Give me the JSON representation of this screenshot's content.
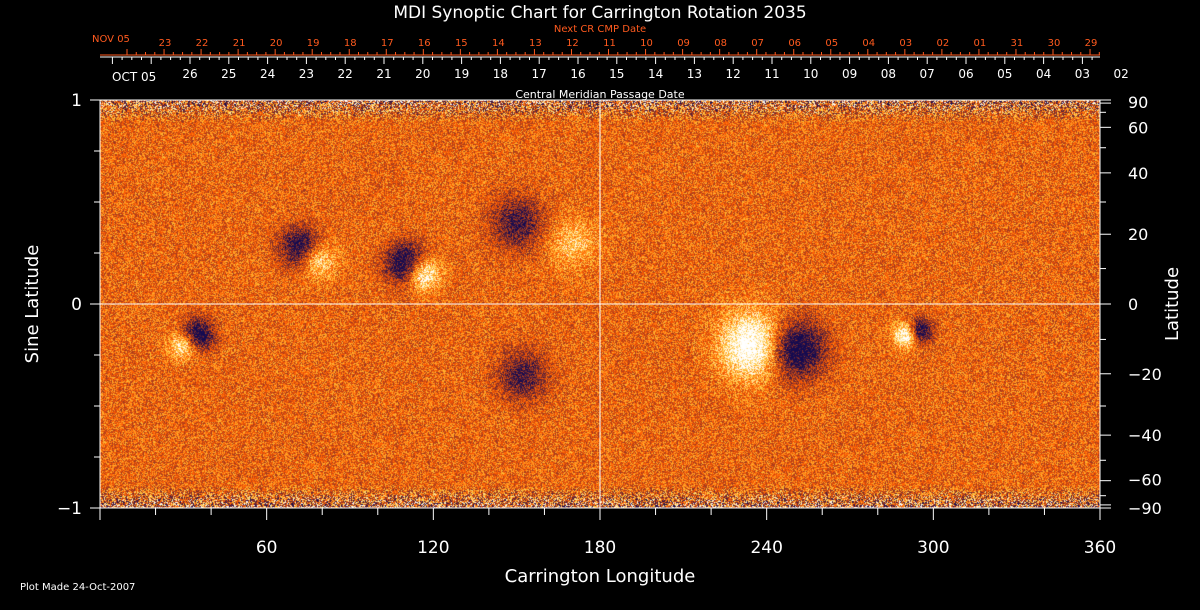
{
  "chart_data": {
    "type": "heatmap",
    "title": "MDI Synoptic Chart for Carrington Rotation 2035",
    "xlabel": "Carrington Longitude",
    "ylabel_left": "Sine Latitude",
    "ylabel_right": "Latitude",
    "xlim": [
      0,
      360
    ],
    "ylim_sine": [
      -1,
      1
    ],
    "x_ticks": [
      60,
      120,
      180,
      240,
      300,
      360
    ],
    "y_left_ticks": [
      {
        "value": 1,
        "label": "1"
      },
      {
        "value": 0,
        "label": "0"
      },
      {
        "value": -1,
        "label": "−1"
      }
    ],
    "y_right_ticks": [
      {
        "lat": 90,
        "label": "90"
      },
      {
        "lat": 60,
        "label": "60"
      },
      {
        "lat": 40,
        "label": "40"
      },
      {
        "lat": 20,
        "label": "20"
      },
      {
        "lat": 0,
        "label": "0"
      },
      {
        "lat": -20,
        "label": "−20"
      },
      {
        "lat": -40,
        "label": "−40"
      },
      {
        "lat": -60,
        "label": "−60"
      },
      {
        "lat": -90,
        "label": "−90"
      }
    ],
    "next_cr_label": "Next CR CMP Date",
    "next_cr_month": "NOV 05",
    "next_cr_dates": [
      "23",
      "22",
      "21",
      "20",
      "19",
      "18",
      "17",
      "16",
      "15",
      "14",
      "13",
      "12",
      "11",
      "10",
      "09",
      "08",
      "07",
      "06",
      "05",
      "04",
      "03",
      "02",
      "01",
      "31",
      "30",
      "29"
    ],
    "cmp_label": "Central Meridian Passage Date",
    "cmp_month": "OCT 05",
    "cmp_dates": [
      "26",
      "25",
      "24",
      "23",
      "22",
      "21",
      "20",
      "19",
      "18",
      "17",
      "16",
      "15",
      "14",
      "13",
      "12",
      "11",
      "10",
      "09",
      "08",
      "07",
      "06",
      "05",
      "04",
      "03",
      "02"
    ],
    "footer": "Plot Made 24-Oct-2007",
    "grid": {
      "center_lines": true
    },
    "colors": {
      "background": "#ff5a00",
      "positive": "#ffffff",
      "negative": "#140a50",
      "axis": "#ffffff",
      "top_axis": "#ff5a1e"
    },
    "features": [
      {
        "lon": 72,
        "sinlat": 0.28,
        "polarity": "negative",
        "strength": 0.8,
        "size": 1.0
      },
      {
        "lon": 78,
        "sinlat": 0.22,
        "polarity": "positive",
        "strength": 0.6,
        "size": 0.9
      },
      {
        "lon": 110,
        "sinlat": 0.2,
        "polarity": "negative",
        "strength": 0.9,
        "size": 1.0
      },
      {
        "lon": 116,
        "sinlat": 0.15,
        "polarity": "positive",
        "strength": 0.9,
        "size": 0.8
      },
      {
        "lon": 150,
        "sinlat": 0.4,
        "polarity": "negative",
        "strength": 0.6,
        "size": 1.3
      },
      {
        "lon": 170,
        "sinlat": 0.3,
        "polarity": "positive",
        "strength": 0.4,
        "size": 1.2
      },
      {
        "lon": 35,
        "sinlat": -0.15,
        "polarity": "negative",
        "strength": 0.9,
        "size": 0.8
      },
      {
        "lon": 30,
        "sinlat": -0.2,
        "polarity": "positive",
        "strength": 0.7,
        "size": 0.7
      },
      {
        "lon": 152,
        "sinlat": -0.35,
        "polarity": "negative",
        "strength": 0.6,
        "size": 1.2
      },
      {
        "lon": 235,
        "sinlat": -0.2,
        "polarity": "positive",
        "strength": 1.0,
        "size": 1.6
      },
      {
        "lon": 250,
        "sinlat": -0.22,
        "polarity": "negative",
        "strength": 1.0,
        "size": 1.4
      },
      {
        "lon": 290,
        "sinlat": -0.15,
        "polarity": "positive",
        "strength": 0.9,
        "size": 0.6
      },
      {
        "lon": 295,
        "sinlat": -0.13,
        "polarity": "negative",
        "strength": 0.9,
        "size": 0.6
      }
    ]
  }
}
